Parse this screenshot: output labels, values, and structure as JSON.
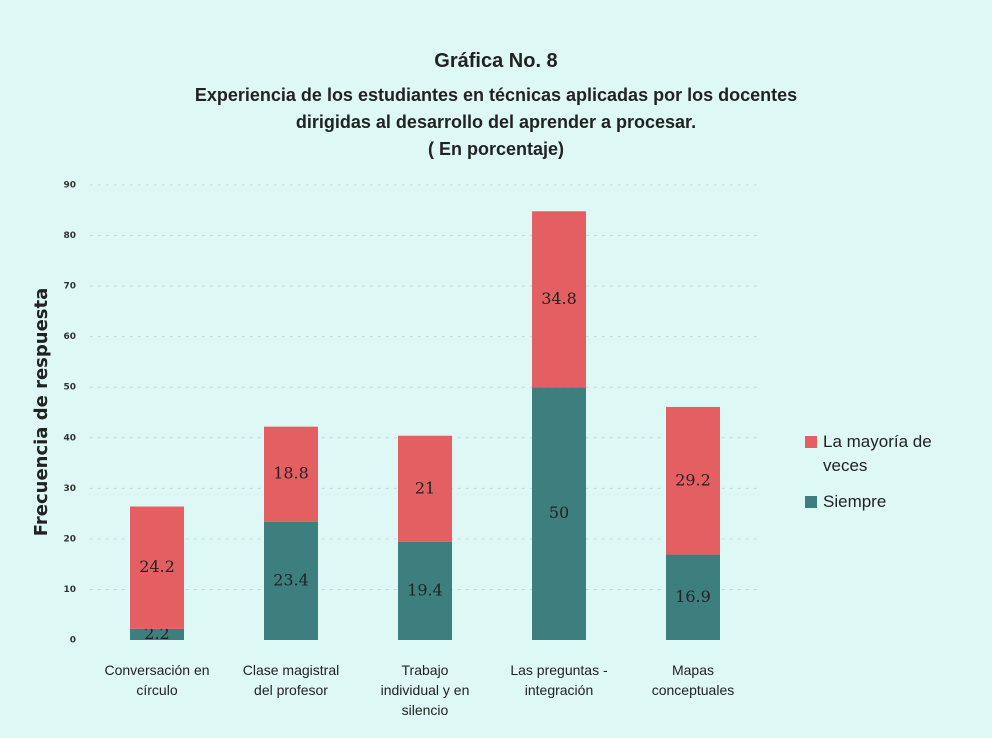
{
  "chart_data": {
    "type": "stacked_bar",
    "title": "Gráfica No. 8",
    "subtitle": "Experiencia de los estudiantes en técnicas aplicadas por los docentes\ndirigidas al desarrollo del aprender a procesar.\n( En porcentaje)",
    "y_label": "Frecuencia de respuesta",
    "categories": [
      "Conversación en\ncírculo",
      "Clase magistral\ndel profesor",
      "Trabajo\nindividual y en\nsilencio",
      "Las preguntas -\nintegración",
      "Mapas\nconceptuales"
    ],
    "series": [
      {
        "name": "Siempre",
        "color": "#3d7e7e",
        "values": [
          2.2,
          23.4,
          19.4,
          50,
          16.9
        ]
      },
      {
        "name": "La mayoría de veces",
        "color": "#e35f62",
        "values": [
          24.2,
          18.8,
          21,
          34.8,
          29.2
        ]
      }
    ],
    "ylim": [
      0,
      90
    ],
    "yticks": [
      0,
      10,
      20,
      30,
      40,
      50,
      60,
      70,
      80,
      90
    ],
    "grid": true
  }
}
